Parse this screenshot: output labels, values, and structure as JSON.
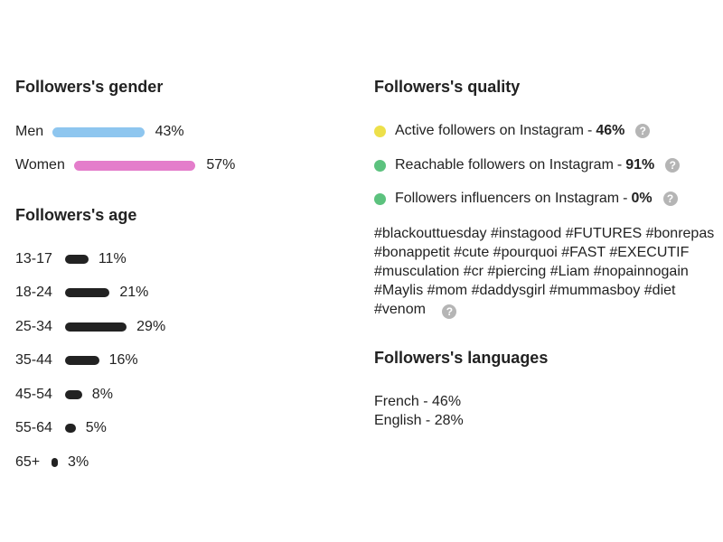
{
  "gender": {
    "title": "Followers's gender",
    "items": [
      {
        "label": "Men",
        "value": "43%",
        "percent": 43,
        "color": "#8ec6ef"
      },
      {
        "label": "Women",
        "value": "57%",
        "percent": 57,
        "color": "#e47dcb"
      }
    ]
  },
  "age": {
    "title": "Followers's age",
    "bar_color": "#222222",
    "items": [
      {
        "label": "13-17",
        "value": "11%",
        "percent": 11
      },
      {
        "label": "18-24",
        "value": "21%",
        "percent": 21
      },
      {
        "label": "25-34",
        "value": "29%",
        "percent": 29
      },
      {
        "label": "35-44",
        "value": "16%",
        "percent": 16
      },
      {
        "label": "45-54",
        "value": "8%",
        "percent": 8
      },
      {
        "label": "55-64",
        "value": "5%",
        "percent": 5
      },
      {
        "label": "65+",
        "value": "3%",
        "percent": 3
      }
    ]
  },
  "quality": {
    "title": "Followers's quality",
    "items": [
      {
        "label": "Active followers on Instagram",
        "separator": "-",
        "value": "46%",
        "dot_color": "#ede04a",
        "icon": "help-icon"
      },
      {
        "label": "Reachable followers on Instagram",
        "separator": "-",
        "value": "91%",
        "dot_color": "#5cc27e",
        "icon": "help-icon"
      },
      {
        "label": "Followers influencers on Instagram",
        "separator": "-",
        "value": "0%",
        "dot_color": "#5cc27e",
        "icon": "help-icon"
      }
    ]
  },
  "hashtags": {
    "text": "#blackouttuesday #instagood #FUTURES #bonrepas #bonappetit #cute #pourquoi #FAST #EXECUTIF #musculation #cr #piercing #Liam #nopainnogain #Maylis #mom #daddysgirl #mummasboy #diet #venom",
    "icon": "help-icon"
  },
  "languages": {
    "title": "Followers's languages",
    "items": [
      {
        "text": "French - 46%"
      },
      {
        "text": "English - 28%"
      }
    ]
  },
  "help_glyph": "?"
}
